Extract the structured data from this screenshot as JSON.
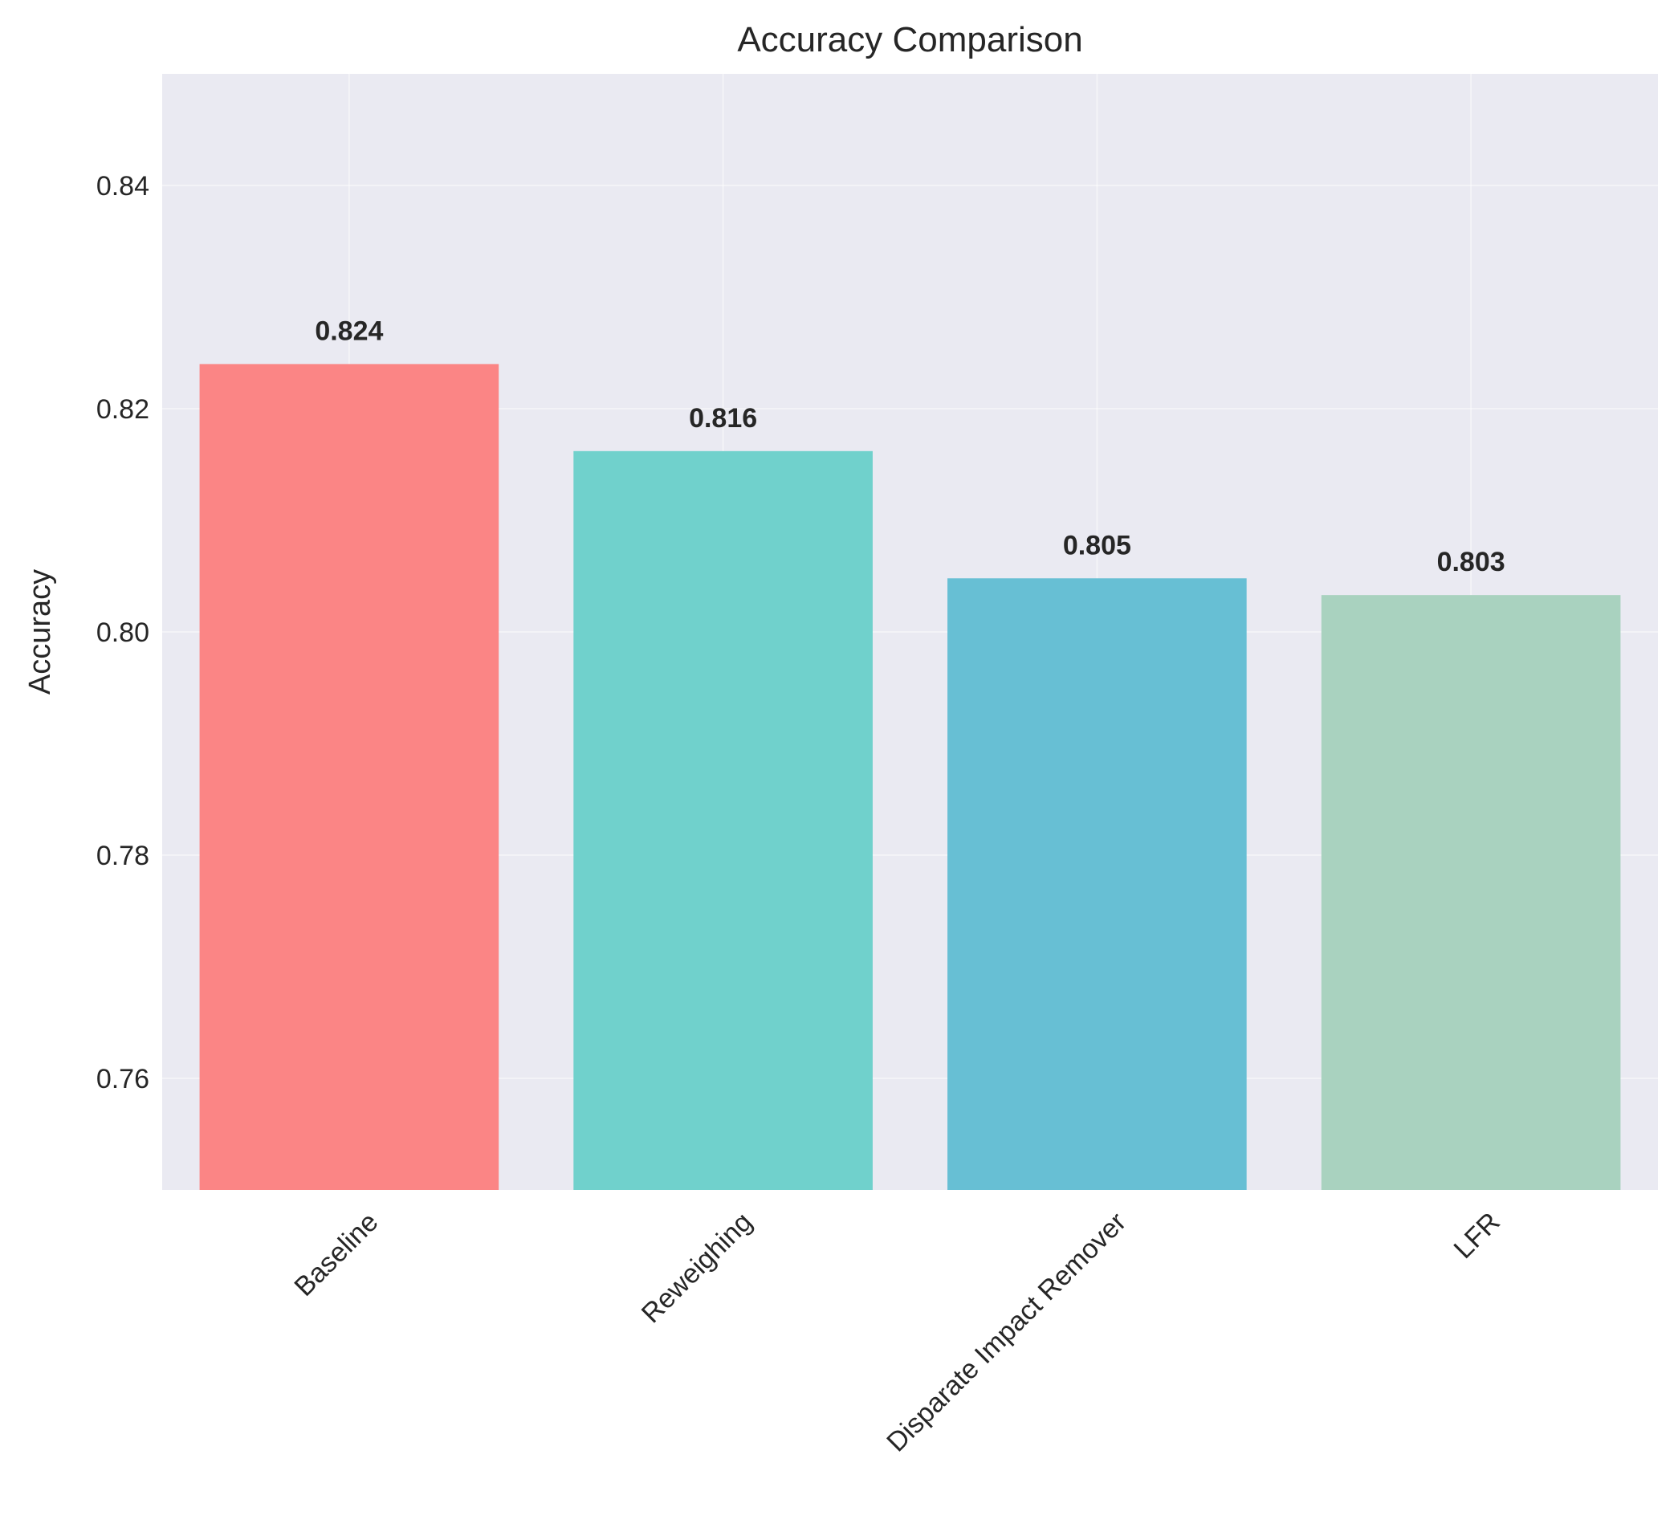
{
  "chart_data": {
    "type": "bar",
    "title": "Accuracy Comparison",
    "xlabel": "",
    "ylabel": "Accuracy",
    "categories": [
      "Baseline",
      "Reweighing",
      "Disparate Impact Remover",
      "LFR"
    ],
    "values": [
      0.824,
      0.8162,
      0.8048,
      0.8033
    ],
    "value_labels": [
      "0.824",
      "0.816",
      "0.805",
      "0.803"
    ],
    "colors": [
      "#fb8585",
      "#70d1cc",
      "#67bfd4",
      "#a9d2bf"
    ],
    "ylim": [
      0.75,
      0.85
    ],
    "yticks": [
      0.76,
      0.78,
      0.8,
      0.82,
      0.84
    ],
    "ytick_labels": [
      "0.76",
      "0.78",
      "0.80",
      "0.82",
      "0.84"
    ],
    "x_tick_rotation_deg": 45,
    "grid": true,
    "background": "#eaeaf2"
  }
}
